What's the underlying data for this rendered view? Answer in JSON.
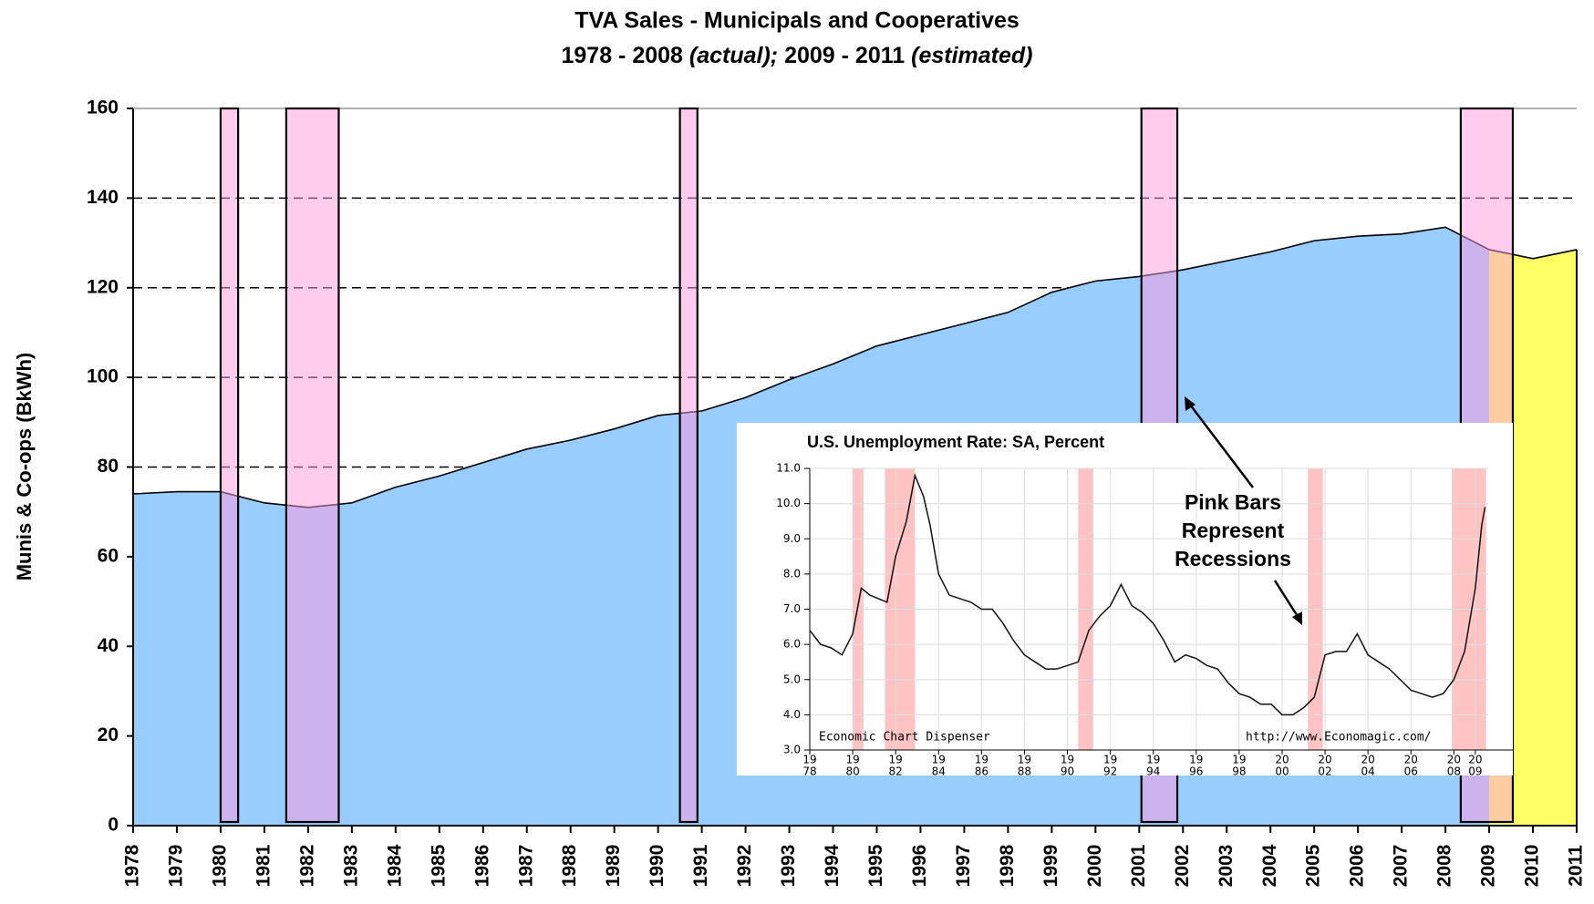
{
  "chart_data": [
    {
      "type": "area",
      "title": "TVA Sales - Municipals and Cooperatives",
      "subtitle_parts": [
        "1978 - 2008",
        "(actual);",
        "2009 - 2011",
        "(estimated)"
      ],
      "ylabel": "Munis & Co-ops (BkWh)",
      "x": [
        1978,
        1979,
        1980,
        1981,
        1982,
        1983,
        1984,
        1985,
        1986,
        1987,
        1988,
        1989,
        1990,
        1991,
        1992,
        1993,
        1994,
        1995,
        1996,
        1997,
        1998,
        1999,
        2000,
        2001,
        2002,
        2003,
        2004,
        2005,
        2006,
        2007,
        2008,
        2009,
        2010,
        2011
      ],
      "series": [
        {
          "color": "#99ccff",
          "values": [
            74,
            74.5,
            74.5,
            72,
            71,
            72,
            75.5,
            78,
            81,
            84,
            86,
            88.5,
            91.5,
            92.5,
            95.5,
            99.5,
            103,
            107,
            109.5,
            112,
            114.5,
            119,
            121.5,
            122.5,
            124,
            126,
            128,
            130.5,
            131.5,
            132,
            133.5,
            128.5,
            null,
            null
          ]
        },
        {
          "color": "#ffff66",
          "values": [
            null,
            null,
            null,
            null,
            null,
            null,
            null,
            null,
            null,
            null,
            null,
            null,
            null,
            null,
            null,
            null,
            null,
            null,
            null,
            null,
            null,
            null,
            null,
            null,
            null,
            null,
            null,
            null,
            null,
            null,
            null,
            128.5,
            126.5,
            128.5
          ]
        }
      ],
      "xlim": [
        1978,
        2011
      ],
      "xticks": [
        1978,
        1979,
        1980,
        1981,
        1982,
        1983,
        1984,
        1985,
        1986,
        1987,
        1988,
        1989,
        1990,
        1991,
        1992,
        1993,
        1994,
        1995,
        1996,
        1997,
        1998,
        1999,
        2000,
        2001,
        2002,
        2003,
        2004,
        2005,
        2006,
        2007,
        2008,
        2009,
        2010,
        2011
      ],
      "ylim": [
        0,
        160
      ],
      "yticks": [
        0,
        20,
        40,
        60,
        80,
        100,
        120,
        140,
        160
      ],
      "grid": true,
      "recession_color": "#ff99dd",
      "recessions": [
        {
          "start": 1980.0,
          "end": 1980.4
        },
        {
          "start": 1981.5,
          "end": 1982.7
        },
        {
          "start": 1990.5,
          "end": 1990.9
        },
        {
          "start": 2001.05,
          "end": 2001.87
        },
        {
          "start": 2008.35,
          "end": 2009.54
        }
      ],
      "annotation": [
        "Pink Bars",
        "Represent",
        "Recessions"
      ]
    },
    {
      "type": "line",
      "title": "U.S. Unemployment Rate: SA, Percent",
      "x": [
        1978,
        1978.5,
        1979,
        1979.5,
        1980,
        1980.4,
        1980.8,
        1981.2,
        1981.6,
        1982,
        1982.5,
        1982.9,
        1983.3,
        1983.6,
        1984,
        1984.5,
        1985,
        1985.5,
        1986,
        1986.5,
        1987,
        1987.5,
        1988,
        1988.5,
        1989,
        1989.5,
        1990,
        1990.5,
        1991,
        1991.5,
        1992,
        1992.5,
        1993,
        1993.5,
        1994,
        1994.5,
        1995,
        1995.5,
        1996,
        1996.5,
        1997,
        1997.5,
        1998,
        1998.5,
        1999,
        1999.5,
        2000,
        2000.5,
        2001,
        2001.5,
        2002,
        2002.5,
        2003,
        2003.5,
        2004,
        2004.5,
        2005,
        2005.5,
        2006,
        2006.5,
        2007,
        2007.5,
        2008,
        2008.5,
        2009,
        2009.3,
        2009.45
      ],
      "series": [
        {
          "color": "#111111",
          "values": [
            6.4,
            6.0,
            5.9,
            5.7,
            6.3,
            7.6,
            7.4,
            7.3,
            7.2,
            8.5,
            9.5,
            10.8,
            10.2,
            9.4,
            8.0,
            7.4,
            7.3,
            7.2,
            7.0,
            7.0,
            6.6,
            6.1,
            5.7,
            5.5,
            5.3,
            5.3,
            5.4,
            5.5,
            6.4,
            6.8,
            7.1,
            7.7,
            7.1,
            6.9,
            6.6,
            6.1,
            5.5,
            5.7,
            5.6,
            5.4,
            5.3,
            4.9,
            4.6,
            4.5,
            4.3,
            4.3,
            4.0,
            4.0,
            4.2,
            4.5,
            5.7,
            5.8,
            5.8,
            6.3,
            5.7,
            5.5,
            5.3,
            5.0,
            4.7,
            4.6,
            4.5,
            4.6,
            5.0,
            5.8,
            7.6,
            9.4,
            9.9
          ]
        }
      ],
      "xlim": [
        1978,
        2009.6
      ],
      "xticks": [
        {
          "value": 1978,
          "label": [
            "19",
            "78"
          ]
        },
        {
          "value": 1980,
          "label": [
            "19",
            "80"
          ]
        },
        {
          "value": 1982,
          "label": [
            "19",
            "82"
          ]
        },
        {
          "value": 1984,
          "label": [
            "19",
            "84"
          ]
        },
        {
          "value": 1986,
          "label": [
            "19",
            "86"
          ]
        },
        {
          "value": 1988,
          "label": [
            "19",
            "88"
          ]
        },
        {
          "value": 1990,
          "label": [
            "19",
            "90"
          ]
        },
        {
          "value": 1992,
          "label": [
            "19",
            "92"
          ]
        },
        {
          "value": 1994,
          "label": [
            "19",
            "94"
          ]
        },
        {
          "value": 1996,
          "label": [
            "19",
            "96"
          ]
        },
        {
          "value": 1998,
          "label": [
            "19",
            "98"
          ]
        },
        {
          "value": 2000,
          "label": [
            "20",
            "00"
          ]
        },
        {
          "value": 2002,
          "label": [
            "20",
            "02"
          ]
        },
        {
          "value": 2004,
          "label": [
            "20",
            "04"
          ]
        },
        {
          "value": 2006,
          "label": [
            "20",
            "06"
          ]
        },
        {
          "value": 2008,
          "label": [
            "20",
            "08"
          ]
        },
        {
          "value": 2009,
          "label": [
            "20",
            "09"
          ]
        }
      ],
      "ylim": [
        3,
        11
      ],
      "yticks": [
        {
          "value": 3,
          "label": "3.0"
        },
        {
          "value": 4,
          "label": "4.0"
        },
        {
          "value": 5,
          "label": "5.0"
        },
        {
          "value": 6,
          "label": "6.0"
        },
        {
          "value": 7,
          "label": "7.0"
        },
        {
          "value": 8,
          "label": "8.0"
        },
        {
          "value": 9,
          "label": "9.0"
        },
        {
          "value": 10,
          "label": "10.0"
        },
        {
          "value": 11,
          "label": "11.0"
        }
      ],
      "grid": true,
      "recession_color": "#ffaaaa",
      "recessions": [
        {
          "start": 1980.0,
          "end": 1980.5
        },
        {
          "start": 1981.5,
          "end": 1982.9
        },
        {
          "start": 1990.5,
          "end": 1991.2
        },
        {
          "start": 2001.2,
          "end": 2001.9
        },
        {
          "start": 2007.9,
          "end": 2009.5
        }
      ],
      "notes": [
        "Economic Chart Dispenser",
        "http://www.Economagic.com/"
      ]
    }
  ]
}
